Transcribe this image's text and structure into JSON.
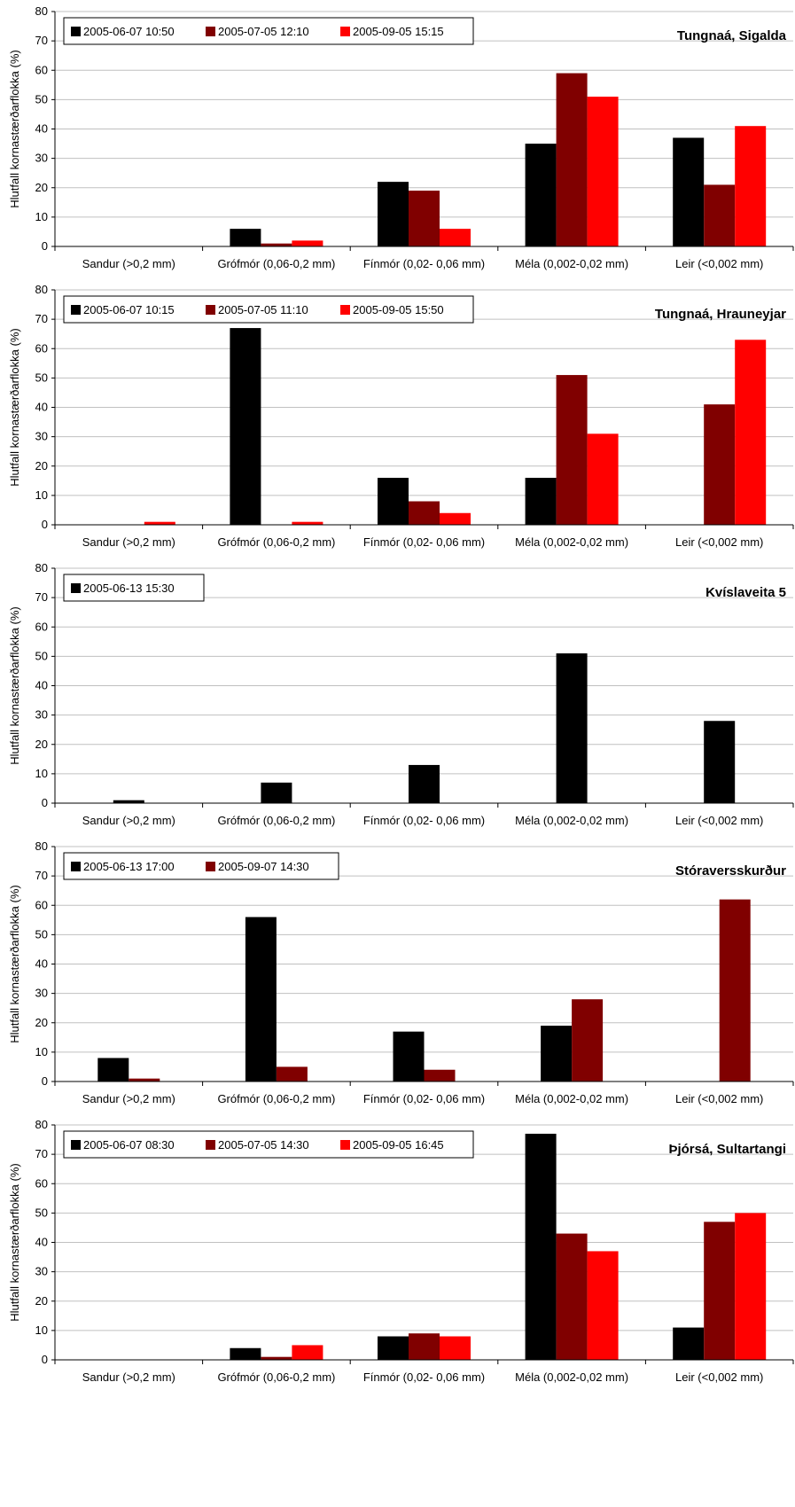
{
  "colors": {
    "black": "#000000",
    "darkred": "#800000",
    "red": "#ff0000"
  },
  "chart_data": [
    {
      "type": "bar",
      "title": "Tungnaá, Sigalda",
      "ylabel": "Hlutfall kornastærðarflokka (%)",
      "ylim": [
        0,
        80
      ],
      "yticks": [
        0,
        10,
        20,
        30,
        40,
        50,
        60,
        70,
        80
      ],
      "grid": true,
      "legend": "top-left",
      "categories": [
        "Sandur (>0,2 mm)",
        "Grófmór (0,06-0,2 mm)",
        "Fínmór (0,02- 0,06 mm)",
        "Méla (0,002-0,02 mm)",
        "Leir (<0,002 mm)"
      ],
      "series": [
        {
          "name": "2005-06-07 10:50",
          "color": "#000000",
          "values": [
            0,
            6,
            22,
            35,
            37
          ]
        },
        {
          "name": "2005-07-05 12:10",
          "color": "#800000",
          "values": [
            0,
            1,
            19,
            59,
            21
          ]
        },
        {
          "name": "2005-09-05 15:15",
          "color": "#ff0000",
          "values": [
            0,
            2,
            6,
            51,
            41
          ]
        }
      ]
    },
    {
      "type": "bar",
      "title": "Tungnaá, Hrauneyjar",
      "ylabel": "Hlutfall kornastærðarflokka (%)",
      "ylim": [
        0,
        80
      ],
      "yticks": [
        0,
        10,
        20,
        30,
        40,
        50,
        60,
        70,
        80
      ],
      "grid": true,
      "legend": "top-left",
      "categories": [
        "Sandur (>0,2 mm)",
        "Grófmór (0,06-0,2 mm)",
        "Fínmór (0,02- 0,06 mm)",
        "Méla (0,002-0,02 mm)",
        "Leir (<0,002 mm)"
      ],
      "series": [
        {
          "name": "2005-06-07 10:15",
          "color": "#000000",
          "values": [
            0,
            67,
            16,
            16,
            0
          ]
        },
        {
          "name": "2005-07-05 11:10",
          "color": "#800000",
          "values": [
            0,
            0,
            8,
            51,
            41
          ]
        },
        {
          "name": "2005-09-05 15:50",
          "color": "#ff0000",
          "values": [
            1,
            1,
            4,
            31,
            63
          ]
        }
      ]
    },
    {
      "type": "bar",
      "title": "Kvíslaveita 5",
      "ylabel": "Hlutfall kornastærðarflokka (%)",
      "ylim": [
        0,
        80
      ],
      "yticks": [
        0,
        10,
        20,
        30,
        40,
        50,
        60,
        70,
        80
      ],
      "grid": true,
      "legend": "top-left",
      "categories": [
        "Sandur (>0,2 mm)",
        "Grófmór (0,06-0,2 mm)",
        "Fínmór (0,02- 0,06 mm)",
        "Méla (0,002-0,02 mm)",
        "Leir (<0,002 mm)"
      ],
      "series": [
        {
          "name": "2005-06-13 15:30",
          "color": "#000000",
          "values": [
            1,
            7,
            13,
            51,
            28
          ]
        }
      ]
    },
    {
      "type": "bar",
      "title": "Stóraversskurður",
      "ylabel": "Hlutfall kornastærðarflokka (%)",
      "ylim": [
        0,
        80
      ],
      "yticks": [
        0,
        10,
        20,
        30,
        40,
        50,
        60,
        70,
        80
      ],
      "grid": true,
      "legend": "top-left",
      "categories": [
        "Sandur (>0,2 mm)",
        "Grófmór (0,06-0,2 mm)",
        "Fínmór (0,02- 0,06 mm)",
        "Méla (0,002-0,02 mm)",
        "Leir (<0,002 mm)"
      ],
      "series": [
        {
          "name": "2005-06-13 17:00",
          "color": "#000000",
          "values": [
            8,
            56,
            17,
            19,
            0
          ]
        },
        {
          "name": "2005-09-07 14:30",
          "color": "#800000",
          "values": [
            1,
            5,
            4,
            28,
            62
          ]
        }
      ]
    },
    {
      "type": "bar",
      "title": "Þjórsá, Sultartangi",
      "ylabel": "Hlutfall kornastærðarflokka (%)",
      "ylim": [
        0,
        80
      ],
      "yticks": [
        0,
        10,
        20,
        30,
        40,
        50,
        60,
        70,
        80
      ],
      "grid": true,
      "legend": "top-left",
      "categories": [
        "Sandur (>0,2 mm)",
        "Grófmór (0,06-0,2 mm)",
        "Fínmór (0,02- 0,06 mm)",
        "Méla (0,002-0,02 mm)",
        "Leir (<0,002 mm)"
      ],
      "series": [
        {
          "name": "2005-06-07 08:30",
          "color": "#000000",
          "values": [
            0,
            4,
            8,
            77,
            11
          ]
        },
        {
          "name": "2005-07-05 14:30",
          "color": "#800000",
          "values": [
            0,
            1,
            9,
            43,
            47
          ]
        },
        {
          "name": "2005-09-05 16:45",
          "color": "#ff0000",
          "values": [
            0,
            5,
            8,
            37,
            50
          ]
        }
      ]
    }
  ]
}
